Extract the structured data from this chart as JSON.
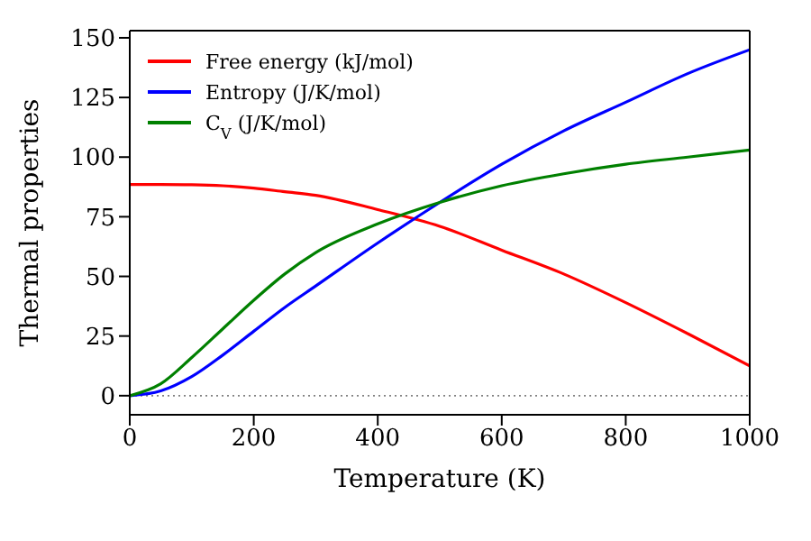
{
  "chart_data": {
    "type": "line",
    "xlabel": "Temperature (K)",
    "ylabel": "Thermal properties",
    "x": [
      0,
      50,
      100,
      150,
      200,
      250,
      300,
      400,
      500,
      600,
      700,
      800,
      900,
      1000
    ],
    "series": [
      {
        "name": "Free energy (kJ/mol)",
        "color": "#ff0000",
        "values": [
          88.5,
          88.5,
          88.4,
          88,
          87,
          85.5,
          84,
          78,
          71,
          61,
          51,
          39,
          26,
          12.5
        ]
      },
      {
        "name": "Entropy (J/K/mol)",
        "color": "#0000ff",
        "values": [
          0,
          2,
          8,
          17,
          27,
          37,
          46,
          64,
          81,
          97,
          111,
          123,
          135,
          145
        ]
      },
      {
        "name": "C$_{V}$ (J/K/mol)",
        "color": "#008000",
        "values": [
          0,
          5,
          16,
          28,
          40,
          51,
          60,
          72,
          81,
          88,
          93,
          97,
          100,
          103
        ]
      }
    ],
    "xlim": [
      0,
      1000
    ],
    "xticks": [
      0,
      200,
      400,
      600,
      800,
      1000
    ],
    "ylim": [
      -8,
      153
    ],
    "yticks": [
      0,
      25,
      50,
      75,
      100,
      125,
      150
    ],
    "ref_lines": [
      {
        "axis": "y",
        "value": 0,
        "color": "#808080",
        "line_style": "dotted"
      }
    ],
    "grid": false,
    "legend": "top left",
    "marker": "none",
    "line_style": "solid"
  }
}
